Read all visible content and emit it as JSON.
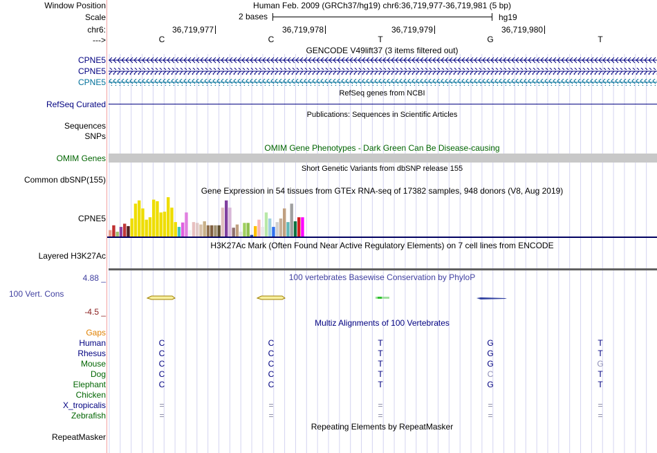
{
  "colors": {
    "navy": "#000080",
    "green": "#006400",
    "teal": "#00709a",
    "orange": "#e08000",
    "grid": "#c8c8f0",
    "cons_blue": "#4040a0",
    "cons_neg": "#8b2020"
  },
  "header": {
    "window_position_label": "Window Position",
    "window_position_value": "Human Feb. 2009 (GRCh37/hg19)   chr6:36,719,977-36,719,981 (5 bp)",
    "scale_label": "Scale",
    "scale_value": "2 bases",
    "scale_assembly": "hg19",
    "chrom_label": "chr6:",
    "positions": [
      "36,719,977",
      "36,719,978",
      "36,719,979",
      "36,719,980"
    ],
    "strand_label": "--->",
    "bases": [
      "C",
      "C",
      "T",
      "G",
      "T"
    ]
  },
  "tracks": {
    "gencode_title": "GENCODE V49lift37 (3 items filtered out)",
    "gencode_items": [
      "CPNE5",
      "CPNE5",
      "CPNE5"
    ],
    "refseq_title": "RefSeq genes from NCBI",
    "refseq_label": "RefSeq Curated",
    "pubs_title": "Publications: Sequences in Scientific Articles",
    "sequences_label": "Sequences",
    "snps_label": "SNPs",
    "omim_title": "OMIM Gene Phenotypes - Dark Green Can Be Disease-causing",
    "omim_label": "OMIM Genes",
    "dbsnp_title": "Short Genetic Variants from dbSNP release 155",
    "dbsnp_label": "Common dbSNP(155)",
    "gtex_title": "Gene Expression in 54 tissues from GTEx RNA-seq of 17382 samples, 948 donors (V8, Aug 2019)",
    "gtex_label": "CPNE5",
    "h3k27_title": "H3K27Ac Mark (Often Found Near Active Regulatory Elements) on 7 cell lines from ENCODE",
    "h3k27_label": "Layered H3K27Ac",
    "cons_max": "4.88 _",
    "cons_label": "100 Vert. Cons",
    "cons_min": "-4.5 _",
    "cons_title": "100 vertebrates Basewise Conservation by PhyloP",
    "multiz_title": "Multiz Alignments of 100 Vertebrates",
    "gaps_label": "Gaps",
    "repeat_title": "Repeating Elements by RepeatMasker",
    "repeat_label": "RepeatMasker"
  },
  "species": [
    {
      "name": "Human",
      "bases": [
        "C",
        "C",
        "T",
        "G",
        "T"
      ]
    },
    {
      "name": "Rhesus",
      "bases": [
        "C",
        "C",
        "T",
        "G",
        "T"
      ]
    },
    {
      "name": "Mouse",
      "bases": [
        "C",
        "C",
        "T",
        "G",
        "G"
      ]
    },
    {
      "name": "Dog",
      "bases": [
        "C",
        "C",
        "T",
        "C",
        "T"
      ]
    },
    {
      "name": "Elephant",
      "bases": [
        "C",
        "C",
        "T",
        "G",
        "T"
      ]
    },
    {
      "name": "Chicken",
      "bases": [
        "",
        "",
        "",
        "",
        ""
      ]
    },
    {
      "name": "X_tropicalis",
      "bases": [
        "=",
        "=",
        "=",
        "=",
        "="
      ]
    },
    {
      "name": "Zebrafish",
      "bases": [
        "=",
        "=",
        "=",
        "=",
        "="
      ]
    }
  ],
  "gtex_bars": [
    {
      "v": 0.16,
      "c": "#e8a090"
    },
    {
      "v": 0.28,
      "c": "#c03030"
    },
    {
      "v": 0.12,
      "c": "#a0c070"
    },
    {
      "v": 0.24,
      "c": "#9040a0"
    },
    {
      "v": 0.32,
      "c": "#c03838"
    },
    {
      "v": 0.26,
      "c": "#502020"
    },
    {
      "v": 0.45,
      "c": "#eedd00"
    },
    {
      "v": 0.82,
      "c": "#eedd00"
    },
    {
      "v": 0.9,
      "c": "#eedd00"
    },
    {
      "v": 0.7,
      "c": "#eedd00"
    },
    {
      "v": 0.42,
      "c": "#eedd00"
    },
    {
      "v": 0.48,
      "c": "#eedd00"
    },
    {
      "v": 0.92,
      "c": "#eedd00"
    },
    {
      "v": 0.88,
      "c": "#eedd00"
    },
    {
      "v": 0.6,
      "c": "#eedd00"
    },
    {
      "v": 0.62,
      "c": "#eedd00"
    },
    {
      "v": 0.98,
      "c": "#eedd00"
    },
    {
      "v": 0.72,
      "c": "#eedd00"
    },
    {
      "v": 0.36,
      "c": "#eedd00"
    },
    {
      "v": 0.24,
      "c": "#40c0c0"
    },
    {
      "v": 0.35,
      "c": "#e060e0"
    },
    {
      "v": 0.6,
      "c": "#e080e0"
    },
    {
      "v": 0.16,
      "c": "#f0f0f0"
    },
    {
      "v": 0.36,
      "c": "#e8c0c0"
    },
    {
      "v": 0.34,
      "c": "#e0c8c8"
    },
    {
      "v": 0.3,
      "c": "#d8c0a8"
    },
    {
      "v": 0.38,
      "c": "#c8b088"
    },
    {
      "v": 0.28,
      "c": "#907050"
    },
    {
      "v": 0.28,
      "c": "#806040"
    },
    {
      "v": 0.28,
      "c": "#a09070"
    },
    {
      "v": 0.28,
      "c": "#605030"
    },
    {
      "v": 0.72,
      "c": "#e0c0c0"
    },
    {
      "v": 0.9,
      "c": "#8040a0"
    },
    {
      "v": 0.72,
      "c": "#d8b8d8"
    },
    {
      "v": 0.22,
      "c": "#907070"
    },
    {
      "v": 0.3,
      "c": "#c0a080"
    },
    {
      "v": 0.12,
      "c": "#e0e0e0"
    },
    {
      "v": 0.34,
      "c": "#a0d060"
    },
    {
      "v": 0.34,
      "c": "#90c050"
    },
    {
      "v": 0.04,
      "c": "#2040a0"
    },
    {
      "v": 0.26,
      "c": "#ffc000"
    },
    {
      "v": 0.42,
      "c": "#f8b8b8"
    },
    {
      "v": 0.24,
      "c": "#e8e8e8"
    },
    {
      "v": 0.6,
      "c": "#b8e8a8"
    },
    {
      "v": 0.45,
      "c": "#a0d0e0"
    },
    {
      "v": 0.24,
      "c": "#3070f0"
    },
    {
      "v": 0.36,
      "c": "#d0d0d0"
    },
    {
      "v": 0.45,
      "c": "#c8b098"
    },
    {
      "v": 0.7,
      "c": "#c0a080"
    },
    {
      "v": 0.36,
      "c": "#60b8b8"
    },
    {
      "v": 0.82,
      "c": "#a0a0a0"
    },
    {
      "v": 0.38,
      "c": "#107040"
    },
    {
      "v": 0.48,
      "c": "#d02020"
    },
    {
      "v": 0.48,
      "c": "#ff00ff"
    }
  ]
}
